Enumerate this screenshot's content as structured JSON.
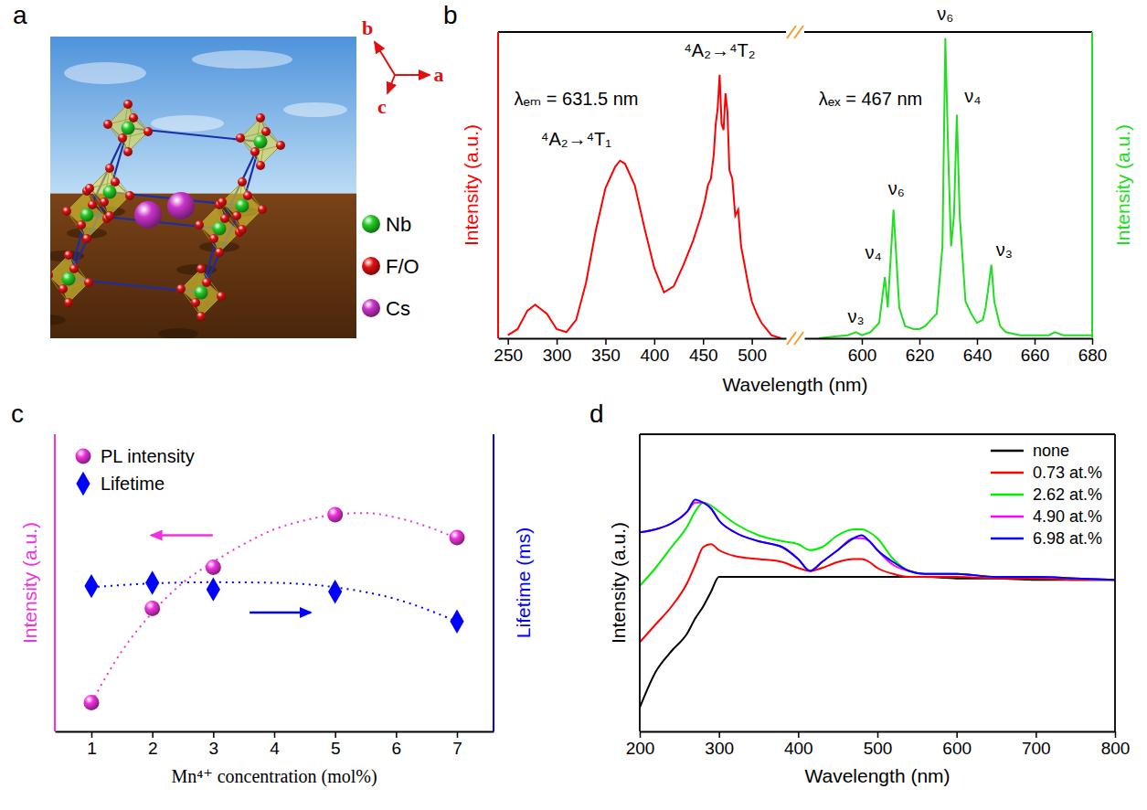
{
  "chart_data": [
    {
      "type": "structure",
      "panel_label": "a",
      "axis_labels": [
        "a",
        "b",
        "c"
      ],
      "series": [
        {
          "name": "Nb",
          "color": "#22cc22"
        },
        {
          "name": "F/O",
          "color": "#e01010"
        },
        {
          "name": "Cs",
          "color": "#cc33cc"
        }
      ]
    },
    {
      "type": "line",
      "panel_label": "b",
      "xlabel": "Wavelength (nm)",
      "ylabel": "Intensity (a.u.)",
      "y2label": "Intensity (a.u.)",
      "xlim": [
        240,
        535
      ],
      "xticks": [
        250,
        300,
        350,
        400,
        450,
        500
      ],
      "x2lim": [
        580,
        680
      ],
      "x2ticks": [
        600,
        620,
        640,
        660,
        680
      ],
      "ylim": [
        0,
        100
      ],
      "y2lim": [
        0,
        100
      ],
      "tick_labels": "x",
      "series": [
        {
          "color": "#ff0000",
          "x": [
            250,
            260,
            270,
            278,
            290,
            300,
            310,
            320,
            330,
            340,
            350,
            360,
            365,
            370,
            380,
            390,
            400,
            410,
            420,
            430,
            440,
            448,
            452,
            455,
            458,
            461,
            463,
            465,
            467,
            469,
            471,
            473,
            475,
            477,
            480,
            483,
            486,
            489,
            492,
            496,
            500,
            505,
            510,
            515,
            520,
            530
          ],
          "values": [
            1,
            3,
            9,
            11,
            8,
            3,
            2,
            6,
            18,
            35,
            49,
            56,
            58,
            57,
            50,
            36,
            23,
            15,
            17,
            24,
            32,
            40,
            45,
            50,
            52,
            60,
            70,
            75,
            86,
            70,
            68,
            80,
            74,
            55,
            52,
            40,
            42,
            30,
            25,
            18,
            12,
            8,
            5,
            3,
            1,
            0
          ]
        },
        {
          "color": "#22dd22",
          "axis": "y2",
          "x": [
            585,
            590,
            595,
            598,
            600,
            603,
            606,
            608,
            609,
            611,
            613,
            615,
            618,
            620,
            622,
            624,
            626,
            628,
            629,
            630,
            631,
            632,
            633,
            634,
            636,
            638,
            640,
            642,
            643,
            645,
            646,
            648,
            650,
            655,
            660,
            665,
            667,
            670,
            680
          ],
          "values": [
            0,
            0.5,
            1,
            2,
            1,
            2,
            5,
            20,
            10,
            42,
            10,
            4,
            3,
            3,
            4,
            6,
            8,
            30,
            98,
            60,
            30,
            40,
            73,
            40,
            12,
            8,
            5,
            6,
            10,
            24,
            12,
            4,
            2,
            1,
            1,
            1,
            2,
            1,
            1
          ]
        }
      ],
      "annotations": [
        {
          "text": "⁴A₂→⁴T₁",
          "x": 320,
          "y": 63
        },
        {
          "text": "⁴A₂→⁴T₂",
          "x": 467,
          "y": 92
        },
        {
          "text": "λₑₘ = 631.5 nm",
          "x": 320,
          "y": 76
        },
        {
          "text": "λₑₓ = 467 nm",
          "x": 603,
          "y": 76,
          "axis": "y2"
        },
        {
          "text": "ν₃",
          "x": 598,
          "y": 5,
          "axis": "y2"
        },
        {
          "text": "ν₄",
          "x": 604,
          "y": 26,
          "axis": "y2"
        },
        {
          "text": "ν₆",
          "x": 612,
          "y": 47,
          "axis": "y2"
        },
        {
          "text": "ν₆",
          "x": 629,
          "y": 104,
          "axis": "y2"
        },
        {
          "text": "ν₄",
          "x": 638.5,
          "y": 77,
          "axis": "y2"
        },
        {
          "text": "ν₃",
          "x": 649.5,
          "y": 27,
          "axis": "y2"
        }
      ]
    },
    {
      "type": "scatter",
      "panel_label": "c",
      "xlabel": "Mn⁴⁺ concentration (mol%)",
      "ylabel": "Intensity (a.u.)",
      "y2label": "Lifetime (ms)",
      "xlim": [
        0.4,
        7.6
      ],
      "xticks": [
        1,
        2,
        3,
        4,
        5,
        6,
        7
      ],
      "ylim": [
        0,
        100
      ],
      "y2lim": [
        0,
        100
      ],
      "tick_labels": "x",
      "legend": "upper left",
      "series": [
        {
          "name": "PL intensity",
          "color": "#ee33dd",
          "marker": "circle",
          "line_style": "dotted",
          "x": [
            1,
            2,
            3,
            5,
            7
          ],
          "values": [
            9.7,
            41.4,
            55.2,
            72.9,
            65.2
          ],
          "fit": {
            "x": [
              1,
              1.5,
              2,
              2.5,
              3,
              3.5,
              4,
              4.5,
              5,
              5.5,
              6,
              6.5,
              7
            ],
            "values": [
              9.7,
              27,
              40,
              50,
              57,
              63,
              68,
              71,
              73,
              73.5,
              72,
              69,
              65
            ]
          }
        },
        {
          "name": "Lifetime",
          "color": "#0000ff",
          "marker": "diamond",
          "line_style": "dotted",
          "axis": "y2",
          "x": [
            1,
            2,
            3,
            5,
            7
          ],
          "values": [
            48.9,
            50,
            47.8,
            47,
            37
          ],
          "fit": {
            "x": [
              1,
              2,
              3,
              4,
              5,
              6,
              7
            ],
            "values": [
              48.5,
              49.8,
              50.2,
              50,
              48.5,
              44.5,
              37
            ]
          }
        }
      ]
    },
    {
      "type": "line",
      "panel_label": "d",
      "xlabel": "Wavelength (nm)",
      "ylabel": "Intensity (a.u.)",
      "xlim": [
        200,
        800
      ],
      "xticks": [
        200,
        300,
        400,
        500,
        600,
        700,
        800
      ],
      "ylim": [
        0,
        100
      ],
      "tick_labels": "x",
      "legend": "upper right",
      "x": [
        200,
        220,
        240,
        260,
        270,
        280,
        290,
        300,
        320,
        350,
        380,
        400,
        415,
        430,
        450,
        470,
        480,
        490,
        500,
        520,
        540,
        560,
        600,
        650,
        700,
        750,
        800
      ],
      "series": [
        {
          "name": "none",
          "color": "#000000",
          "values": [
            8,
            20,
            27,
            33,
            38,
            42,
            47,
            52,
            52,
            52,
            52,
            52,
            52,
            52,
            52,
            52,
            52,
            52,
            52,
            52,
            52,
            52,
            51.5,
            51.5,
            51,
            51,
            51
          ]
        },
        {
          "name": "0.73 at.%",
          "color": "#ff0000",
          "values": [
            30,
            36,
            42,
            50,
            56,
            62,
            63,
            61,
            59,
            58,
            57,
            55,
            54,
            55,
            57,
            58,
            58,
            57,
            55,
            53,
            52,
            52,
            52,
            51.5,
            51.5,
            51,
            51
          ]
        },
        {
          "name": "2.62 at.%",
          "color": "#00ee00",
          "values": [
            49,
            55,
            62,
            69,
            74,
            77,
            76,
            74,
            70,
            66,
            64,
            63,
            61,
            62,
            66,
            68,
            68,
            67,
            65,
            58,
            54,
            53,
            53,
            52,
            52,
            51.5,
            51
          ]
        },
        {
          "name": "4.90 at.%",
          "color": "#ff00ff",
          "values": [
            67,
            68,
            70,
            74,
            77,
            77,
            75,
            71,
            67,
            64,
            62,
            58,
            54,
            57,
            61,
            65,
            65,
            64,
            61,
            56,
            54,
            53,
            53,
            52,
            52,
            51.5,
            51
          ]
        },
        {
          "name": "6.98 at.%",
          "color": "#0000ff",
          "values": [
            67,
            68,
            70,
            74,
            78,
            77,
            75,
            71,
            67,
            64,
            62,
            58,
            54,
            57,
            61,
            65,
            66,
            64,
            61,
            57,
            54,
            53,
            53,
            52,
            52,
            51.5,
            51
          ]
        }
      ]
    }
  ]
}
